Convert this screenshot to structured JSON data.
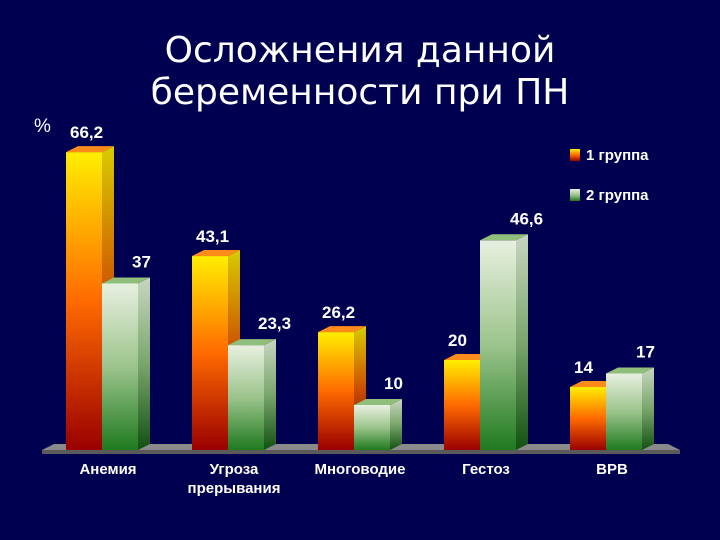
{
  "title_lines": [
    "Осложнения данной",
    "беременности при ПН"
  ],
  "unit": "%",
  "chart_data": {
    "type": "bar",
    "title": "Осложнения данной беременности при ПН",
    "ylabel": "%",
    "xlabel": "",
    "ylim": [
      0,
      70
    ],
    "grid": false,
    "legend_position": "top-right",
    "categories": [
      [
        "Анемия"
      ],
      [
        "Угроза",
        "прерывания"
      ],
      [
        "Многоводие"
      ],
      [
        "Гестоз"
      ],
      [
        "ВРВ"
      ]
    ],
    "series": [
      {
        "name": "1 группа",
        "values": [
          66.2,
          43.1,
          26.2,
          20,
          14
        ],
        "labels": [
          "66,2",
          "43,1",
          "26,2",
          "20",
          "14"
        ]
      },
      {
        "name": "2 группа",
        "values": [
          37,
          23.3,
          10,
          46.6,
          17
        ],
        "labels": [
          "37",
          "23,3",
          "10",
          "46,6",
          "17"
        ]
      }
    ]
  }
}
